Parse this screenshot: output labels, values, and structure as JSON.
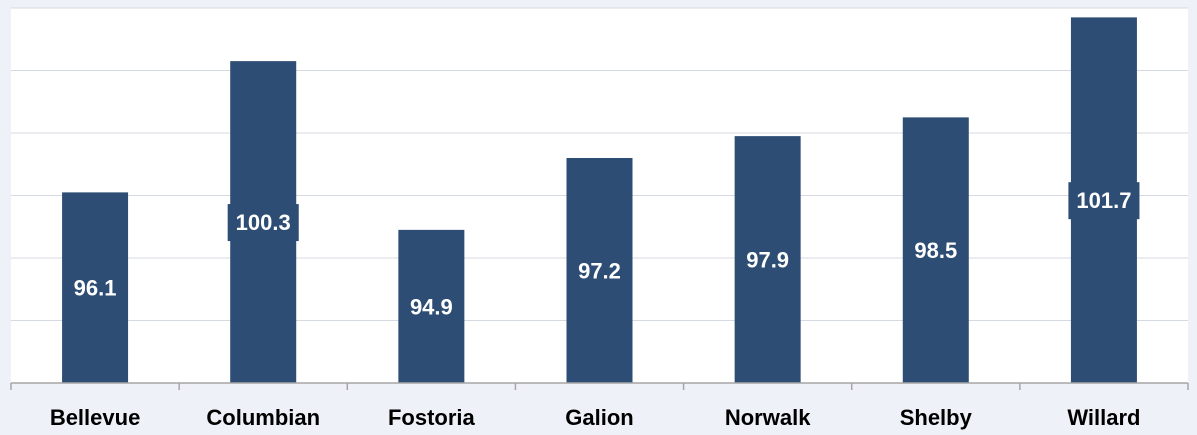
{
  "chart_data": {
    "type": "bar",
    "categories": [
      "Bellevue",
      "Columbian",
      "Fostoria",
      "Galion",
      "Norwalk",
      "Shelby",
      "Willard"
    ],
    "values": [
      96.1,
      100.3,
      94.9,
      97.2,
      97.9,
      98.5,
      101.7
    ],
    "title": "",
    "xlabel": "",
    "ylabel": "",
    "ylim": [
      90,
      102
    ],
    "grid": true,
    "legend": "none",
    "colors": {
      "bar": "#2e4d74",
      "background": "#eef1f7",
      "plot_background": "#ffffff",
      "grid": "#d4d9e2",
      "axis": "#a6a6a6",
      "data_label_text": "#ffffff",
      "category_text": "#000000"
    }
  }
}
